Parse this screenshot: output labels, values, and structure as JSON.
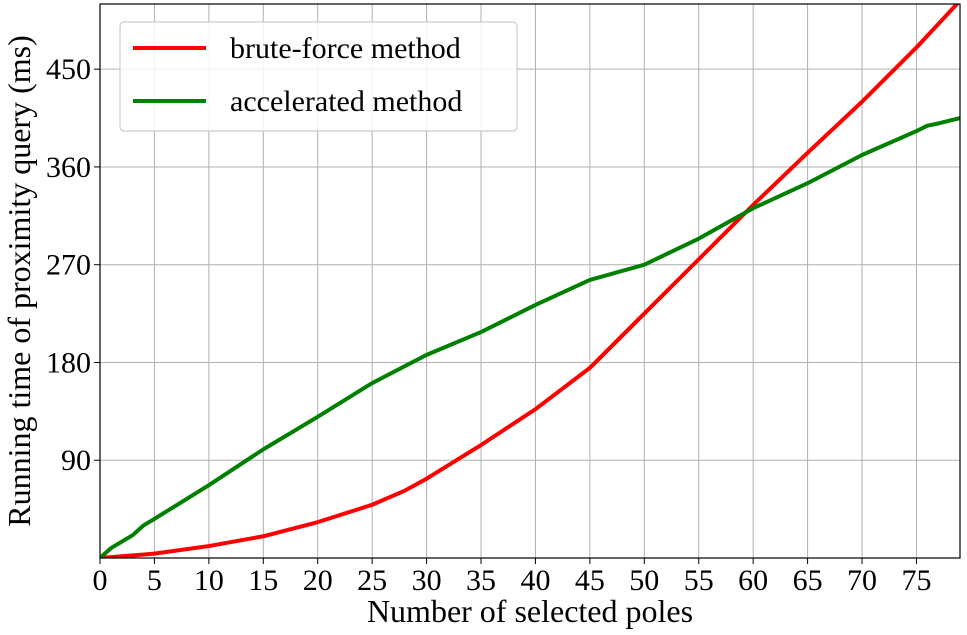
{
  "chart_data": {
    "type": "line",
    "title": "",
    "xlabel": "Number of selected poles",
    "ylabel": "Running time of proximity query (ms)",
    "xlim": [
      0,
      79
    ],
    "ylim": [
      0,
      510
    ],
    "xticks": [
      0,
      5,
      10,
      15,
      20,
      25,
      30,
      35,
      40,
      45,
      50,
      55,
      60,
      65,
      70,
      75
    ],
    "yticks": [
      90,
      180,
      270,
      360,
      450
    ],
    "grid": true,
    "legend_position": "top-left",
    "series": [
      {
        "name": "brute-force method",
        "color": "#ff0000",
        "x": [
          0,
          5,
          10,
          15,
          20,
          25,
          28,
          30,
          35,
          40,
          45,
          50,
          55,
          60,
          65,
          70,
          75,
          79
        ],
        "y": [
          0,
          4,
          11,
          20,
          33,
          49,
          62,
          73,
          104,
          137,
          175,
          225,
          275,
          325,
          373,
          420,
          470,
          513
        ]
      },
      {
        "name": "accelerated method",
        "color": "#008000",
        "x": [
          0,
          1,
          3,
          4,
          5,
          10,
          15,
          20,
          25,
          30,
          35,
          40,
          45,
          50,
          55,
          60,
          65,
          70,
          75,
          76,
          77,
          79
        ],
        "y": [
          0,
          9,
          21,
          30,
          36,
          67,
          100,
          130,
          161,
          187,
          208,
          233,
          256,
          270,
          294,
          322,
          345,
          371,
          393,
          398,
          400,
          405
        ]
      }
    ]
  }
}
